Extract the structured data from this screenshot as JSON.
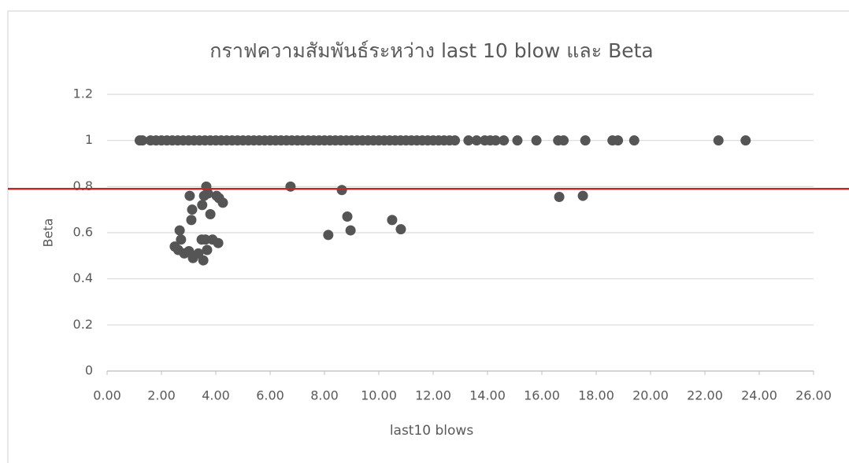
{
  "chart_data": {
    "type": "scatter",
    "title": "กราฟความสัมพันธ์ระหว่าง last 10 blow และ Beta",
    "x_label": "last10 blows",
    "y_label": "Beta",
    "color": "#555555",
    "xlim": [
      0,
      26
    ],
    "ylim": [
      0,
      1.2
    ],
    "xticks": [
      {
        "value": 0,
        "label": "0.00"
      },
      {
        "value": 2,
        "label": "2.00"
      },
      {
        "value": 4,
        "label": "4.00"
      },
      {
        "value": 6,
        "label": "6.00"
      },
      {
        "value": 8,
        "label": "8.00"
      },
      {
        "value": 10,
        "label": "10.00"
      },
      {
        "value": 12,
        "label": "12.00"
      },
      {
        "value": 14,
        "label": "14.00"
      },
      {
        "value": 16,
        "label": "16.00"
      },
      {
        "value": 18,
        "label": "18.00"
      },
      {
        "value": 20,
        "label": "20.00"
      },
      {
        "value": 22,
        "label": "22.00"
      },
      {
        "value": 24,
        "label": "24.00"
      },
      {
        "value": 26,
        "label": "26.00"
      }
    ],
    "yticks": [
      0,
      0.2,
      0.4,
      0.6,
      0.8,
      1,
      1.2
    ],
    "grid": true,
    "reference_line": {
      "value": 0.79,
      "color": "#c0282d"
    },
    "x": [
      1.2,
      1.3,
      1.6,
      1.8,
      2.0,
      2.2,
      2.4,
      2.6,
      2.8,
      3.0,
      3.2,
      3.4,
      3.6,
      3.8,
      4.0,
      4.2,
      4.4,
      4.6,
      4.8,
      5.0,
      5.2,
      5.4,
      5.6,
      5.8,
      6.0,
      6.2,
      6.4,
      6.6,
      6.8,
      7.0,
      7.2,
      7.4,
      7.6,
      7.8,
      8.0,
      8.2,
      8.4,
      8.6,
      8.8,
      9.0,
      9.2,
      9.4,
      9.6,
      9.8,
      10.0,
      10.2,
      10.4,
      10.6,
      10.8,
      11.0,
      11.2,
      11.4,
      11.6,
      11.8,
      12.0,
      12.2,
      12.4,
      12.6,
      12.8,
      13.3,
      13.6,
      13.9,
      14.1,
      14.3,
      14.6,
      15.1,
      15.8,
      16.6,
      16.8,
      17.6,
      18.6,
      18.8,
      19.4,
      22.5,
      23.5,
      3.04,
      3.13,
      3.1,
      3.65,
      3.71,
      3.57,
      3.5,
      3.8,
      4.03,
      4.12,
      4.26,
      2.67,
      2.72,
      2.49,
      2.62,
      2.84,
      3.01,
      3.16,
      3.36,
      3.48,
      3.62,
      3.54,
      3.68,
      3.88,
      4.09,
      6.75,
      8.64,
      8.84,
      8.96,
      8.14,
      10.49,
      10.81,
      16.64,
      17.51
    ],
    "y": [
      1,
      1,
      1,
      1,
      1,
      1,
      1,
      1,
      1,
      1,
      1,
      1,
      1,
      1,
      1,
      1,
      1,
      1,
      1,
      1,
      1,
      1,
      1,
      1,
      1,
      1,
      1,
      1,
      1,
      1,
      1,
      1,
      1,
      1,
      1,
      1,
      1,
      1,
      1,
      1,
      1,
      1,
      1,
      1,
      1,
      1,
      1,
      1,
      1,
      1,
      1,
      1,
      1,
      1,
      1,
      1,
      1,
      1,
      1,
      1,
      1,
      1,
      1,
      1,
      1,
      1,
      1,
      1,
      1,
      1,
      1,
      1,
      1,
      1,
      1,
      0.76,
      0.7,
      0.655,
      0.8,
      0.77,
      0.76,
      0.72,
      0.68,
      0.76,
      0.75,
      0.73,
      0.61,
      0.57,
      0.54,
      0.525,
      0.51,
      0.52,
      0.49,
      0.51,
      0.57,
      0.57,
      0.48,
      0.525,
      0.57,
      0.555,
      0.8,
      0.785,
      0.67,
      0.61,
      0.59,
      0.655,
      0.615,
      0.755,
      0.76
    ]
  }
}
